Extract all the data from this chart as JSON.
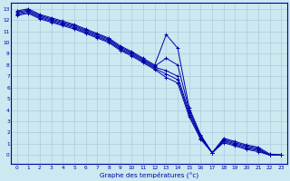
{
  "bg_color": "#cce8f0",
  "grid_color": "#aaccdd",
  "line_color": "#0000aa",
  "marker_color": "#0000aa",
  "xlabel": "Graphe des températures (°c)",
  "xlabel_color": "#0000aa",
  "xlim": [
    -0.5,
    23.5
  ],
  "ylim": [
    -0.8,
    13.5
  ],
  "yticks": [
    0,
    1,
    2,
    3,
    4,
    5,
    6,
    7,
    8,
    9,
    10,
    11,
    12,
    13
  ],
  "xticks": [
    0,
    1,
    2,
    3,
    4,
    5,
    6,
    7,
    8,
    9,
    10,
    11,
    12,
    13,
    14,
    15,
    16,
    17,
    18,
    19,
    20,
    21,
    22,
    23
  ],
  "line1_x": [
    0,
    1,
    2,
    3,
    4,
    5,
    6,
    7,
    8,
    9,
    10,
    11,
    12,
    13,
    14,
    15,
    16,
    17,
    18,
    19,
    20,
    21,
    22,
    23
  ],
  "line1_y": [
    12.8,
    13.0,
    12.5,
    12.2,
    11.9,
    11.6,
    11.2,
    10.8,
    10.4,
    9.7,
    9.2,
    8.6,
    8.0,
    10.7,
    9.5,
    4.2,
    1.8,
    0.2,
    1.5,
    1.2,
    0.9,
    0.7,
    0.1,
    0.0
  ],
  "line2_x": [
    0,
    1,
    2,
    3,
    4,
    5,
    6,
    7,
    8,
    9,
    10,
    11,
    12,
    13,
    14,
    15,
    16,
    17,
    18,
    19,
    20,
    21,
    22,
    23
  ],
  "line2_y": [
    12.7,
    12.9,
    12.4,
    12.1,
    11.8,
    11.5,
    11.1,
    10.7,
    10.3,
    9.6,
    9.1,
    8.5,
    7.9,
    8.6,
    8.0,
    4.0,
    1.7,
    0.2,
    1.4,
    1.1,
    0.8,
    0.6,
    0.0,
    0.0
  ],
  "line3_x": [
    0,
    1,
    2,
    3,
    4,
    5,
    6,
    7,
    8,
    9,
    10,
    11,
    12,
    13,
    14,
    15,
    16,
    17,
    18,
    19,
    20,
    21,
    22,
    23
  ],
  "line3_y": [
    12.6,
    12.8,
    12.3,
    12.0,
    11.7,
    11.4,
    11.0,
    10.6,
    10.2,
    9.5,
    9.0,
    8.4,
    7.8,
    7.5,
    7.0,
    3.8,
    1.6,
    0.2,
    1.3,
    1.0,
    0.7,
    0.5,
    0.0,
    0.0
  ],
  "line4_x": [
    0,
    1,
    2,
    3,
    4,
    5,
    6,
    7,
    8,
    9,
    10,
    11,
    12,
    13,
    14,
    15,
    16,
    17,
    18,
    19,
    20,
    21,
    22,
    23
  ],
  "line4_y": [
    12.5,
    12.7,
    12.2,
    11.9,
    11.6,
    11.3,
    10.9,
    10.5,
    10.1,
    9.4,
    8.9,
    8.3,
    7.7,
    7.2,
    6.7,
    3.6,
    1.5,
    0.2,
    1.2,
    0.9,
    0.6,
    0.4,
    0.0,
    0.0
  ],
  "line5_x": [
    0,
    1,
    2,
    3,
    4,
    5,
    6,
    7,
    8,
    9,
    10,
    11,
    12,
    13,
    14,
    15,
    16,
    17,
    18,
    19,
    20,
    21,
    22,
    23
  ],
  "line5_y": [
    12.4,
    12.6,
    12.1,
    11.8,
    11.5,
    11.2,
    10.8,
    10.4,
    10.0,
    9.3,
    8.8,
    8.2,
    7.6,
    6.9,
    6.4,
    3.4,
    1.4,
    0.2,
    1.1,
    0.8,
    0.5,
    0.3,
    0.0,
    0.0
  ]
}
